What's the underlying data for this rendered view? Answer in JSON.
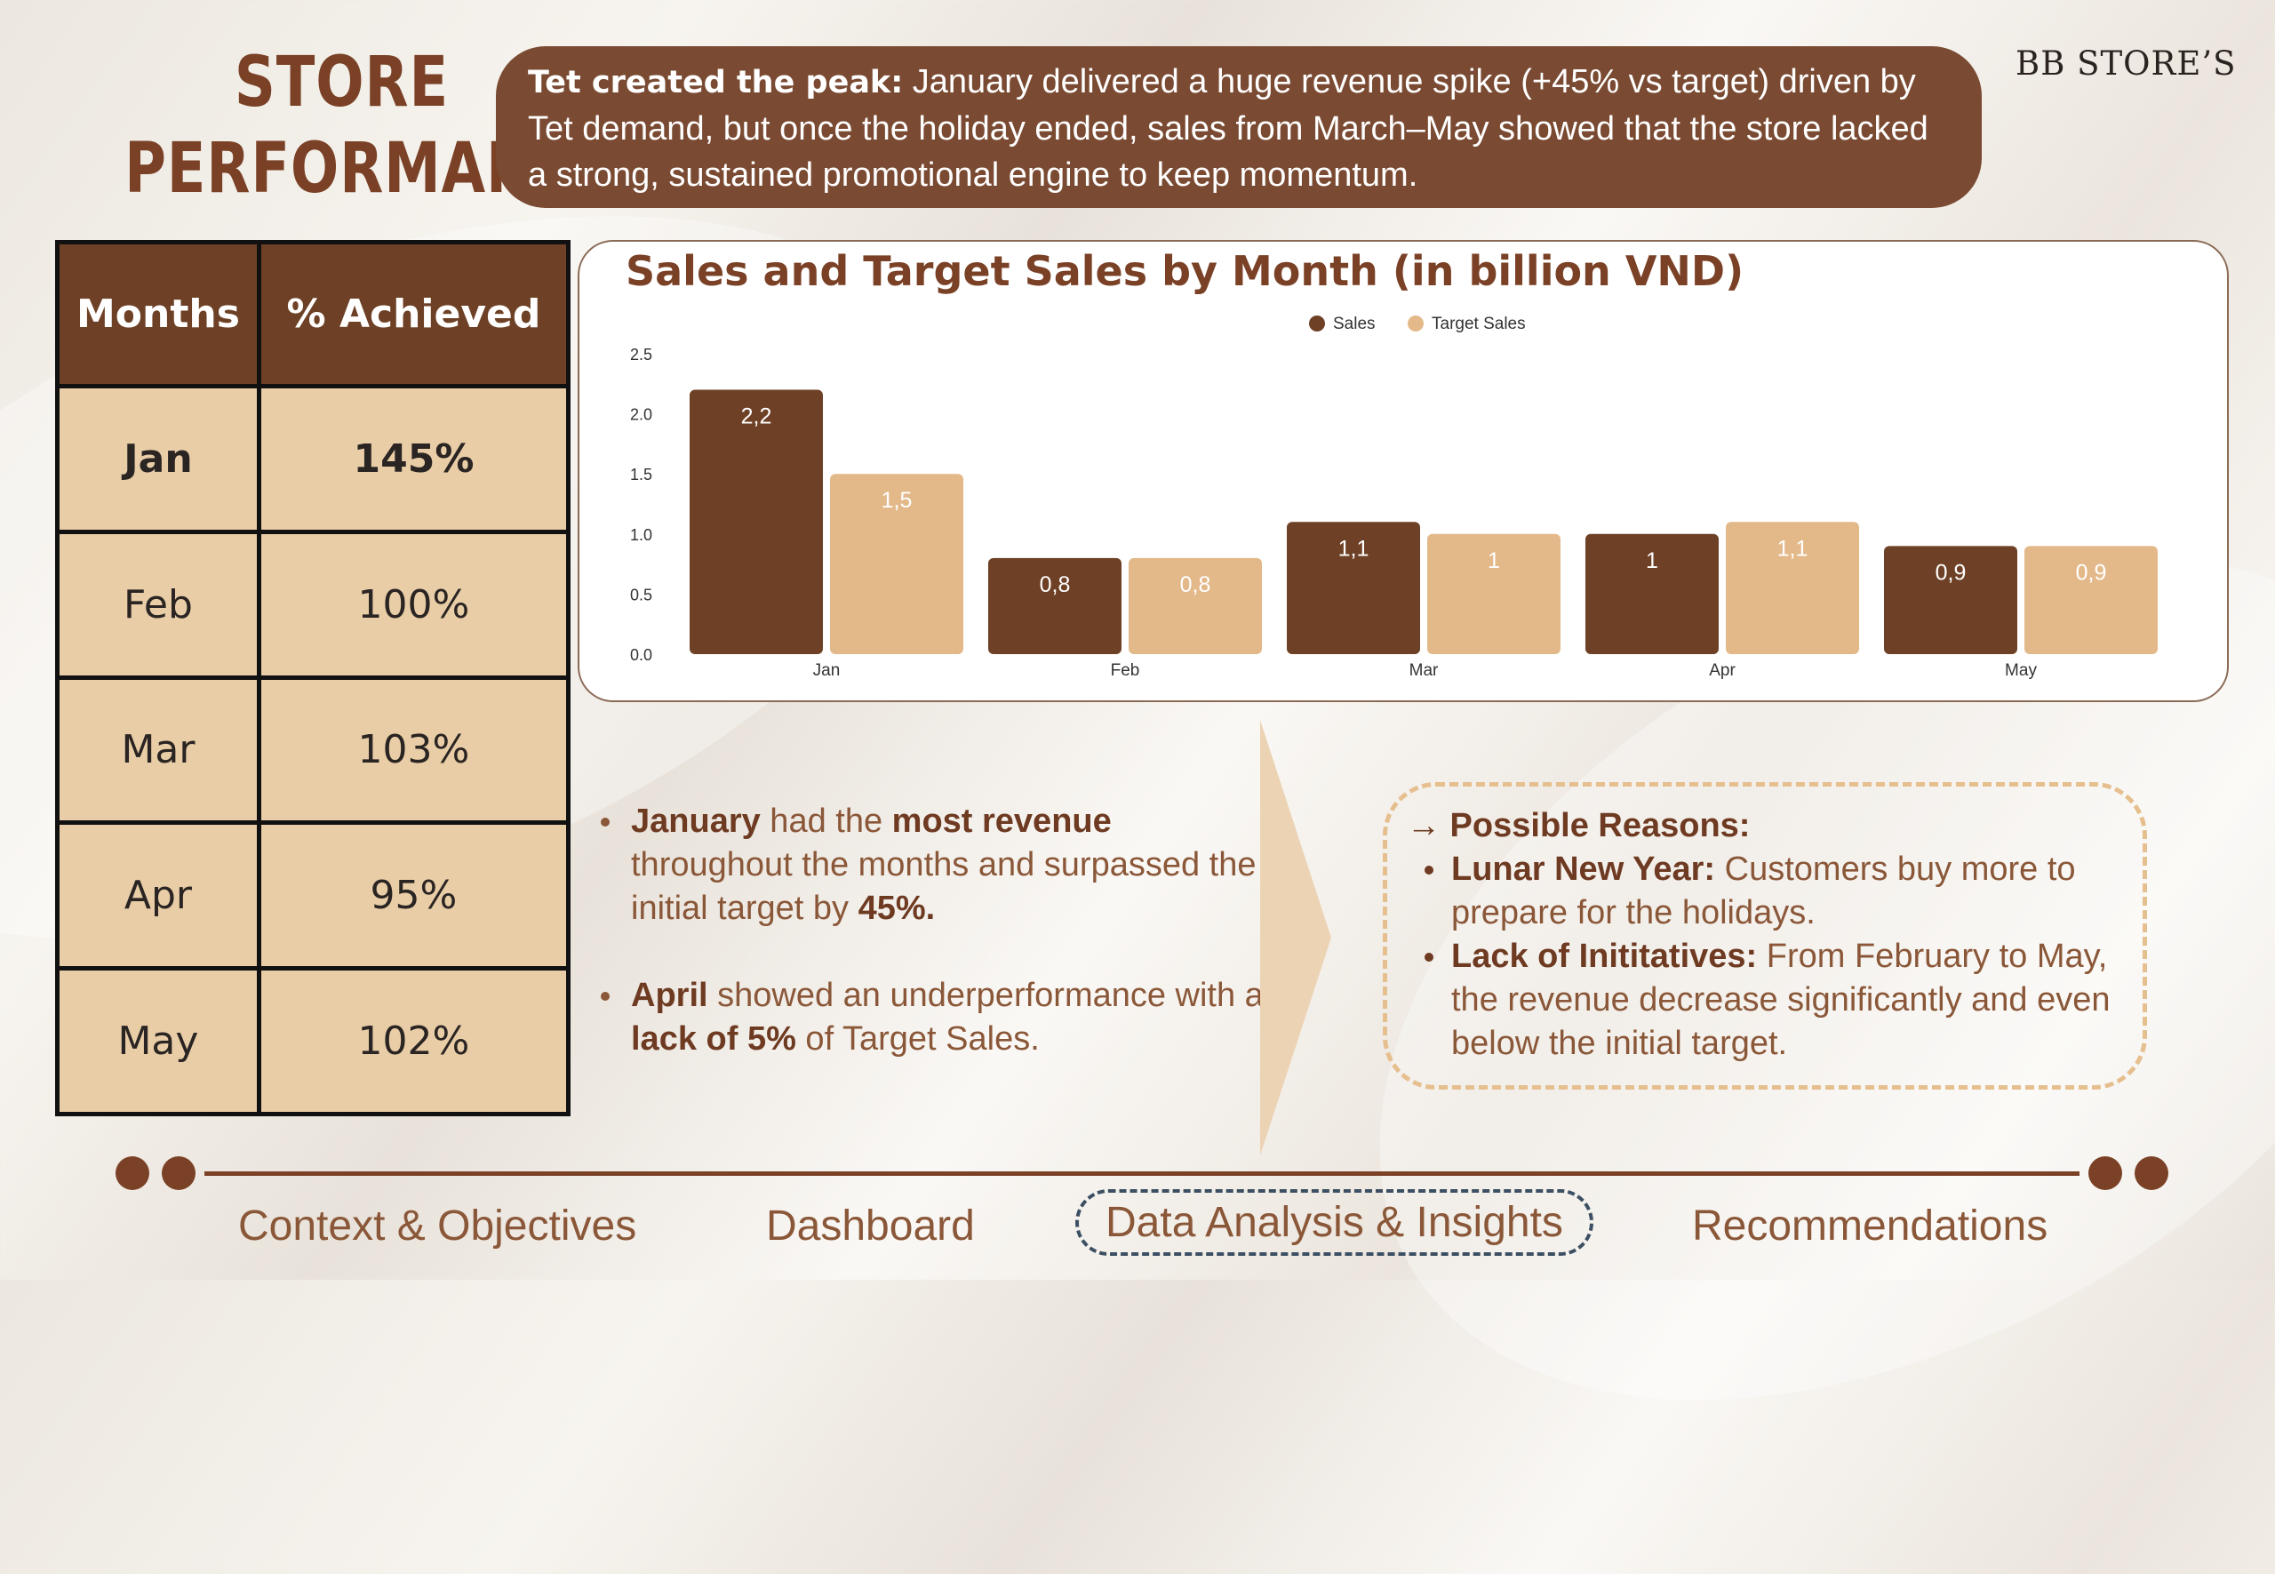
{
  "header": {
    "title_line1": "STORE",
    "title_line2": "PERFORMANCE",
    "brand": "BB STORE’S"
  },
  "banner": {
    "lead": "Tet created the peak:",
    "text": " January delivered a huge revenue spike (+45% vs target) driven by Tet demand, but once the holiday ended, sales from March–May showed that the store lacked a strong, sustained promotional engine to keep momentum."
  },
  "table": {
    "headers": [
      "Months",
      "% Achieved"
    ],
    "rows": [
      {
        "month": "Jan",
        "achieved": "145%"
      },
      {
        "month": "Feb",
        "achieved": "100%"
      },
      {
        "month": "Mar",
        "achieved": "103%"
      },
      {
        "month": "Apr",
        "achieved": "95%"
      },
      {
        "month": "May",
        "achieved": "102%"
      }
    ]
  },
  "chart_data": {
    "type": "bar",
    "title": "Sales and Target Sales by Month (in billion VND)",
    "categories": [
      "Jan",
      "Feb",
      "Mar",
      "Apr",
      "May"
    ],
    "series": [
      {
        "name": "Sales",
        "values": [
          2.2,
          0.8,
          1.1,
          1.0,
          0.9
        ],
        "labels": [
          "2,2",
          "0,8",
          "1,1",
          "1",
          "0,9"
        ],
        "color": "#6e4126"
      },
      {
        "name": "Target Sales",
        "values": [
          1.5,
          0.8,
          1.0,
          1.1,
          0.9
        ],
        "labels": [
          "1,5",
          "0,8",
          "1",
          "1,1",
          "0,9"
        ],
        "color": "#e3b98a"
      }
    ],
    "ylim": [
      0,
      2.5
    ],
    "yticks": [
      "0.0",
      "0.5",
      "1.0",
      "1.5",
      "2.0",
      "2.5"
    ],
    "xlabel": "",
    "ylabel": "",
    "legend": "top-center",
    "grid": false
  },
  "insights": {
    "item1": {
      "b1": "January",
      "t1": " had the ",
      "b2": "most revenue",
      "t2": " throughout the months and surpassed the initial target by ",
      "b3": "45%."
    },
    "item2": {
      "b1": "April",
      "t1": " showed an underperformance with a ",
      "b2": "lack of 5%",
      "t2": " of Target Sales."
    }
  },
  "reasons": {
    "heading": "→ Possible Reasons:",
    "item1_lead": "Lunar New Year:",
    "item1_text": " Customers buy more to prepare for the holidays.",
    "item2_lead": "Lack of Inititatives:",
    "item2_text": " From February to May, the revenue decrease significantly and even below the initial target."
  },
  "nav": {
    "items": [
      "Context & Objectives",
      "Dashboard",
      "Data Analysis & Insights",
      "Recommendations"
    ],
    "active": "Data Analysis & Insights"
  },
  "colors": {
    "brand_brown": "#7a4126",
    "banner_brown": "#7a4a32",
    "table_cell": "#e8cda7",
    "sales": "#6e4126",
    "target": "#e3b98a",
    "active_nav_border": "#3c4f63"
  }
}
